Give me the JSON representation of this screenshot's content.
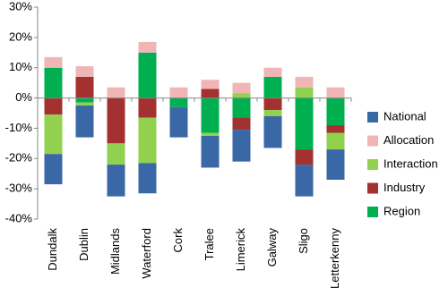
{
  "chart_data": {
    "type": "bar",
    "stacked": true,
    "categories": [
      "Dundalk",
      "Dublin",
      "Midlands",
      "Waterford",
      "Cork",
      "Tralee",
      "Limerick",
      "Galway",
      "Sligo",
      "Letterkenny"
    ],
    "series": [
      {
        "name": "National",
        "color": "#3a68a6",
        "values": [
          -10,
          -10.5,
          -10.5,
          -10,
          -10,
          -10.5,
          -10.5,
          -10.5,
          -10.5,
          -10
        ]
      },
      {
        "name": "Allocation",
        "color": "#f0b6b6",
        "values": [
          3.5,
          3.5,
          3.5,
          3.5,
          3.5,
          3,
          3.5,
          3,
          3.5,
          3.5
        ]
      },
      {
        "name": "Interaction",
        "color": "#92d050",
        "values": [
          -13,
          -1,
          -7,
          -15,
          0,
          -1,
          1.5,
          -2,
          3.5,
          -5.5
        ]
      },
      {
        "name": "Industry",
        "color": "#a2312f",
        "values": [
          -5.5,
          7,
          -15,
          -6.5,
          0,
          3,
          -4,
          -4,
          -5,
          -2.5
        ]
      },
      {
        "name": "Region",
        "color": "#00b050",
        "values": [
          10,
          -1.5,
          0,
          15,
          -3,
          -11.5,
          -6.5,
          7,
          -17,
          -9
        ]
      }
    ],
    "ylim": [
      -40,
      30
    ],
    "yticks": [
      {
        "value": -40,
        "label": "-40%"
      },
      {
        "value": -30,
        "label": "-30%"
      },
      {
        "value": -20,
        "label": "-20%"
      },
      {
        "value": -10,
        "label": "-10%"
      },
      {
        "value": 0,
        "label": "0%"
      },
      {
        "value": 10,
        "label": "10%"
      },
      {
        "value": 20,
        "label": "20%"
      },
      {
        "value": 30,
        "label": "30%"
      }
    ],
    "grid": false,
    "legend": "right"
  }
}
